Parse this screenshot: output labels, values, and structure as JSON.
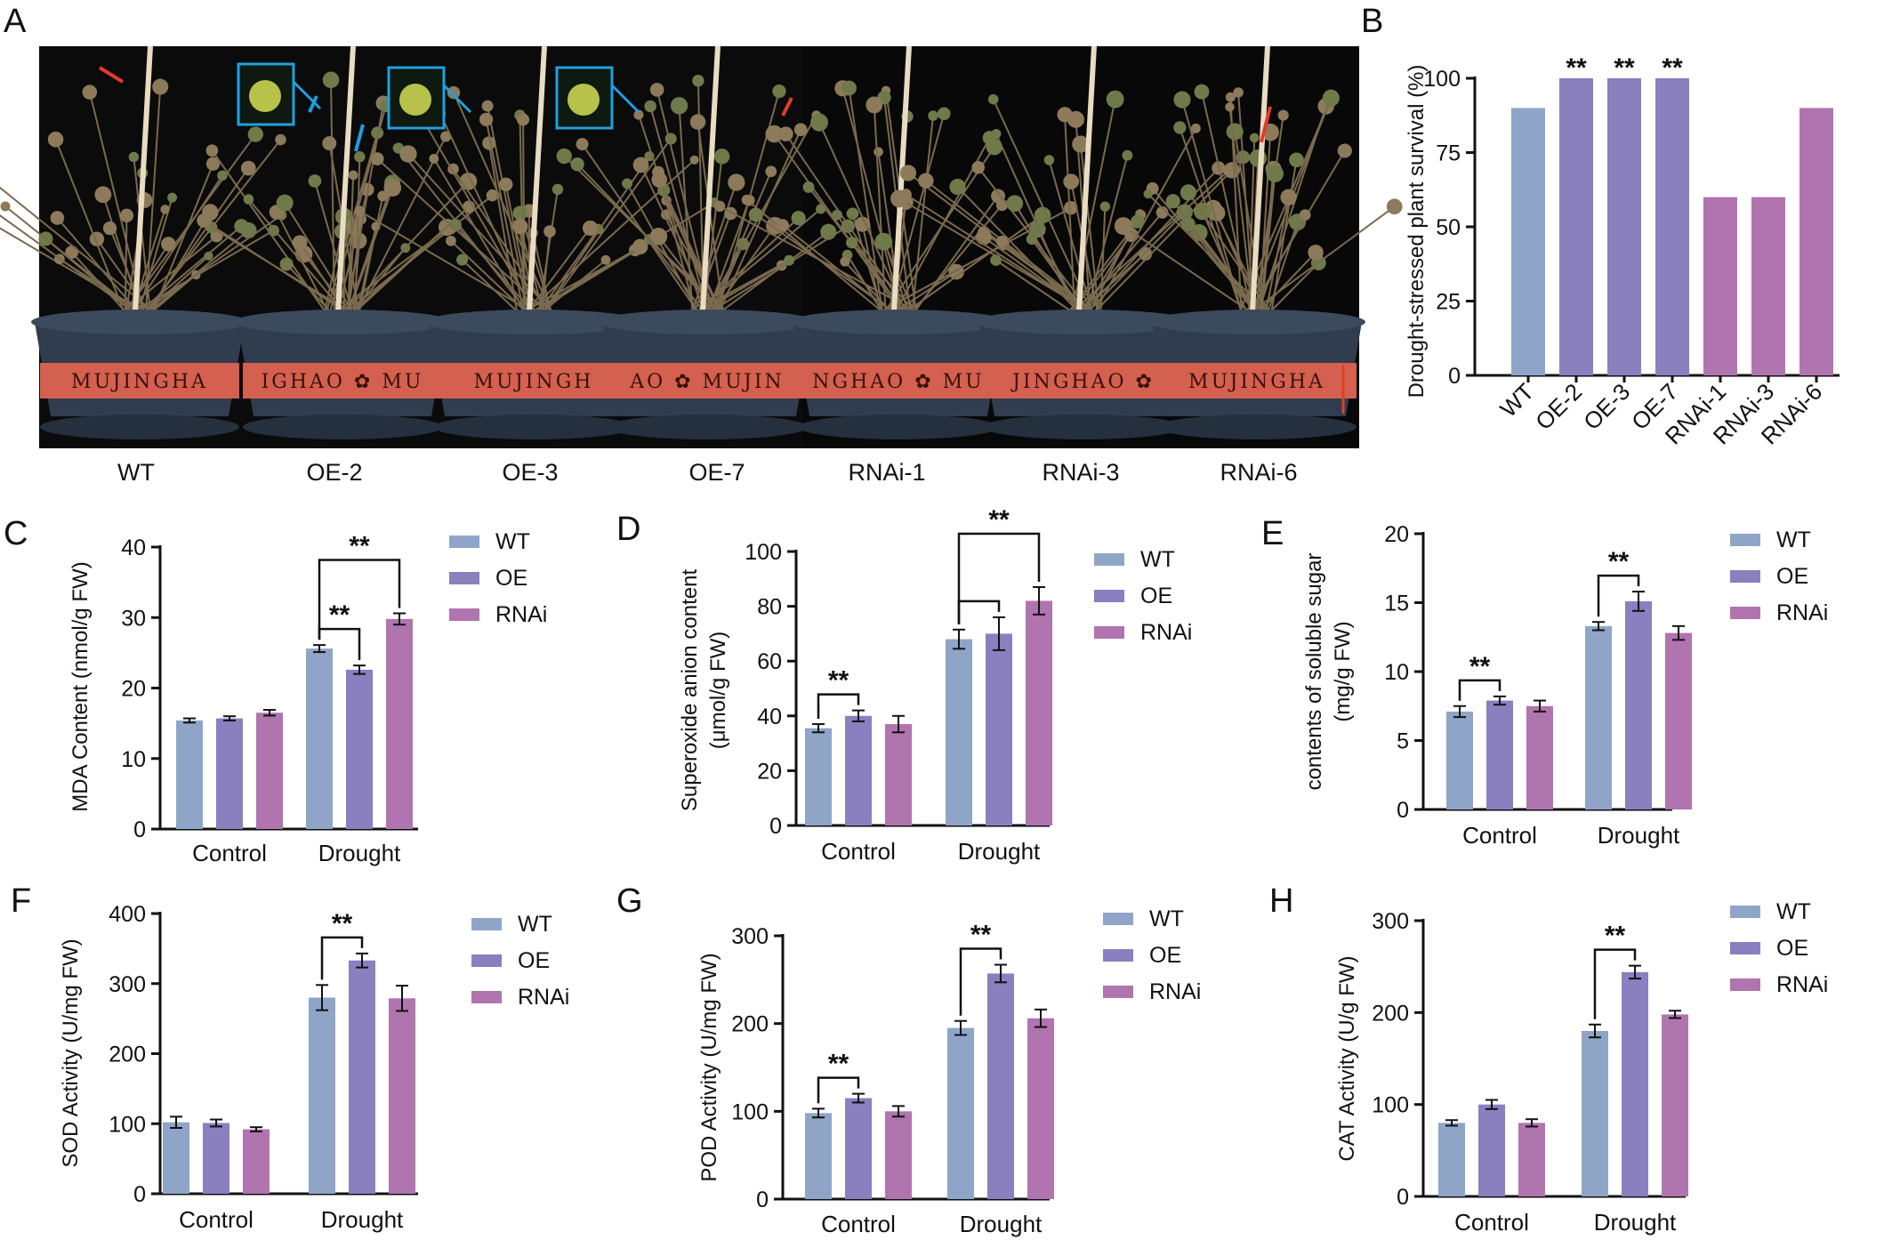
{
  "colors": {
    "WT": "#8fa5c8",
    "OE": "#8a7fbf",
    "RNAi": "#b074ae",
    "photo_bg": "#0b0b0b",
    "pot": "#2f3d4e",
    "pot_band": "#d4604f",
    "sig_line": "#111111"
  },
  "panel_a": {
    "letter": "A",
    "labels": [
      "WT",
      "OE-2",
      "OE-3",
      "OE-7",
      "RNAi-1",
      "RNAi-3",
      "RNAi-6"
    ],
    "pot_texts": [
      "MUJINGHA",
      "IGHAO ✿ MU",
      "MUJINGH",
      "AO ✿ MUJIN",
      "NGHAO ✿ MU",
      "JINGHAO ✿",
      "MUJINGHA"
    ]
  },
  "chart_data": [
    {
      "panel": "B",
      "type": "bar",
      "ylabel": "Drought-stressed plant survival (%)",
      "categories": [
        "WT",
        "OE-2",
        "OE-3",
        "OE-7",
        "RNAi-1",
        "RNAi-3",
        "RNAi-6"
      ],
      "values": [
        90,
        100,
        100,
        100,
        60,
        60,
        90
      ],
      "bar_groups": [
        "WT",
        "OE",
        "OE",
        "OE",
        "RNAi",
        "RNAi",
        "RNAi"
      ],
      "significance": [
        "",
        "**",
        "**",
        "**",
        "",
        "",
        ""
      ],
      "ylim": [
        0,
        100
      ],
      "yticks": [
        0,
        25,
        50,
        75,
        100
      ]
    },
    {
      "panel": "C",
      "type": "bar",
      "ylabel": "MDA Content (nmol/g FW)",
      "categories": [
        "Control",
        "Drought"
      ],
      "series": [
        {
          "name": "WT",
          "values": [
            15.4,
            25.6
          ],
          "errors": [
            0.3,
            0.5
          ]
        },
        {
          "name": "OE",
          "values": [
            15.7,
            22.6
          ],
          "errors": [
            0.3,
            0.6
          ]
        },
        {
          "name": "RNAi",
          "values": [
            16.5,
            29.8
          ],
          "errors": [
            0.4,
            0.8
          ]
        }
      ],
      "ylim": [
        0,
        40
      ],
      "yticks": [
        0,
        10,
        20,
        30,
        40
      ],
      "significance": [
        {
          "group": 1,
          "from": 0,
          "to": 1,
          "label": "**"
        },
        {
          "group": 1,
          "from": 0,
          "to": 2,
          "label": "**"
        }
      ]
    },
    {
      "panel": "D",
      "type": "bar",
      "ylabel": "Superoxide anion content",
      "ylabel2": "(μmol/g FW)",
      "categories": [
        "Control",
        "Drought"
      ],
      "series": [
        {
          "name": "WT",
          "values": [
            35.5,
            68
          ],
          "errors": [
            1.5,
            3.5
          ]
        },
        {
          "name": "OE",
          "values": [
            40,
            70
          ],
          "errors": [
            2,
            6
          ]
        },
        {
          "name": "RNAi",
          "values": [
            37,
            82
          ],
          "errors": [
            3,
            5
          ]
        }
      ],
      "ylim": [
        0,
        100
      ],
      "yticks": [
        0,
        20,
        40,
        60,
        80,
        100
      ],
      "significance": [
        {
          "group": 0,
          "from": 0,
          "to": 1,
          "label": "**"
        },
        {
          "group": 1,
          "from": 0,
          "to": 1,
          "label": ""
        },
        {
          "group": 1,
          "from": 0,
          "to": 2,
          "label": "**"
        }
      ]
    },
    {
      "panel": "E",
      "type": "bar",
      "ylabel": "contents of soluble sugar",
      "ylabel2": "(mg/g FW)",
      "categories": [
        "Control",
        "Drought"
      ],
      "series": [
        {
          "name": "WT",
          "values": [
            7.1,
            13.3
          ],
          "errors": [
            0.4,
            0.3
          ]
        },
        {
          "name": "OE",
          "values": [
            7.9,
            15.1
          ],
          "errors": [
            0.3,
            0.7
          ]
        },
        {
          "name": "RNAi",
          "values": [
            7.5,
            12.8
          ],
          "errors": [
            0.4,
            0.5
          ]
        }
      ],
      "ylim": [
        0,
        20
      ],
      "yticks": [
        0,
        5,
        10,
        15,
        20
      ],
      "significance": [
        {
          "group": 0,
          "from": 0,
          "to": 1,
          "label": "**"
        },
        {
          "group": 1,
          "from": 0,
          "to": 1,
          "label": "**"
        }
      ]
    },
    {
      "panel": "F",
      "type": "bar",
      "ylabel": "SOD Activity  (U/mg FW)",
      "categories": [
        "Control",
        "Drought"
      ],
      "series": [
        {
          "name": "WT",
          "values": [
            102,
            280
          ],
          "errors": [
            8,
            18
          ]
        },
        {
          "name": "OE",
          "values": [
            101,
            333
          ],
          "errors": [
            5,
            10
          ]
        },
        {
          "name": "RNAi",
          "values": [
            92,
            279
          ],
          "errors": [
            3,
            18
          ]
        }
      ],
      "ylim": [
        0,
        400
      ],
      "yticks": [
        0,
        100,
        200,
        300,
        400
      ],
      "significance": [
        {
          "group": 1,
          "from": 0,
          "to": 1,
          "label": "**"
        }
      ]
    },
    {
      "panel": "G",
      "type": "bar",
      "ylabel": "POD Activity (U/mg FW)",
      "categories": [
        "Control",
        "Drought"
      ],
      "series": [
        {
          "name": "WT",
          "values": [
            98,
            195
          ],
          "errors": [
            5,
            8
          ]
        },
        {
          "name": "OE",
          "values": [
            115,
            257
          ],
          "errors": [
            5,
            10
          ]
        },
        {
          "name": "RNAi",
          "values": [
            100,
            206
          ],
          "errors": [
            6,
            10
          ]
        }
      ],
      "ylim": [
        0,
        300
      ],
      "yticks": [
        0,
        100,
        200,
        300
      ],
      "significance": [
        {
          "group": 0,
          "from": 0,
          "to": 1,
          "label": "**"
        },
        {
          "group": 1,
          "from": 0,
          "to": 1,
          "label": "**"
        }
      ]
    },
    {
      "panel": "H",
      "type": "bar",
      "ylabel": "CAT Activity (U/g FW)",
      "categories": [
        "Control",
        "Drought"
      ],
      "series": [
        {
          "name": "WT",
          "values": [
            80,
            180
          ],
          "errors": [
            3,
            7
          ]
        },
        {
          "name": "OE",
          "values": [
            100,
            244
          ],
          "errors": [
            5,
            7
          ]
        },
        {
          "name": "RNAi",
          "values": [
            80,
            198
          ],
          "errors": [
            4,
            4
          ]
        }
      ],
      "ylim": [
        0,
        300
      ],
      "yticks": [
        0,
        100,
        200,
        300
      ],
      "significance": [
        {
          "group": 1,
          "from": 0,
          "to": 1,
          "label": "**"
        }
      ]
    }
  ]
}
